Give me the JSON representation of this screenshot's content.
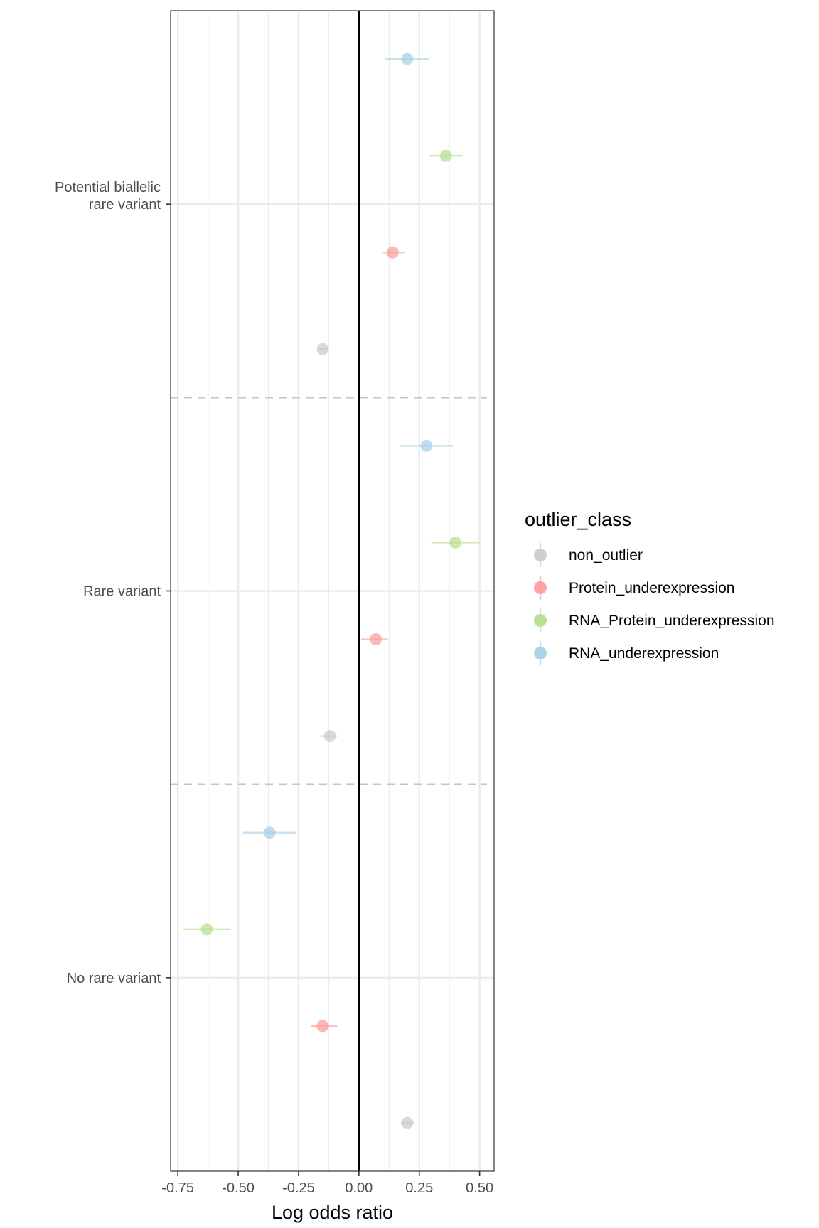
{
  "chart_data": {
    "type": "scatter",
    "subtype": "forest-plot-with-horizontal-error-bars",
    "xlabel": "Log odds ratio",
    "xlim": [
      -0.78,
      0.56
    ],
    "x_ticks": [
      -0.75,
      -0.5,
      -0.25,
      0.0,
      0.25,
      0.5
    ],
    "x_tick_labels": [
      "-0.75",
      "-0.50",
      "-0.25",
      "0.00",
      "0.25",
      "0.50"
    ],
    "reference_line_x": 0,
    "categories": [
      {
        "id": "potential",
        "lines": [
          "Potential biallelic",
          "rare variant"
        ]
      },
      {
        "id": "rare",
        "lines": [
          "Rare variant"
        ]
      },
      {
        "id": "none",
        "lines": [
          "No rare variant"
        ]
      }
    ],
    "grid": true,
    "legend": {
      "title": "outlier_class",
      "placement": "right",
      "entries": [
        {
          "name": "non_outlier",
          "color": "#c9c9c9"
        },
        {
          "name": "Protein_underexpression",
          "color": "#fb9a99"
        },
        {
          "name": "RNA_Protein_underexpression",
          "color": "#b2df8a"
        },
        {
          "name": "RNA_underexpression",
          "color": "#a6cee3"
        }
      ]
    },
    "series": [
      {
        "name": "non_outlier",
        "color": "#c9c9c9",
        "points": [
          {
            "category": "potential",
            "x": -0.15,
            "xmin": -0.17,
            "xmax": -0.13
          },
          {
            "category": "rare",
            "x": -0.12,
            "xmin": -0.16,
            "xmax": -0.09
          },
          {
            "category": "none",
            "x": 0.2,
            "xmin": 0.18,
            "xmax": 0.23
          }
        ]
      },
      {
        "name": "Protein_underexpression",
        "color": "#fb9a99",
        "points": [
          {
            "category": "potential",
            "x": 0.14,
            "xmin": 0.1,
            "xmax": 0.19
          },
          {
            "category": "rare",
            "x": 0.07,
            "xmin": 0.01,
            "xmax": 0.12
          },
          {
            "category": "none",
            "x": -0.15,
            "xmin": -0.2,
            "xmax": -0.09
          }
        ]
      },
      {
        "name": "RNA_Protein_underexpression",
        "color": "#b2df8a",
        "points": [
          {
            "category": "potential",
            "x": 0.36,
            "xmin": 0.29,
            "xmax": 0.43
          },
          {
            "category": "rare",
            "x": 0.4,
            "xmin": 0.3,
            "xmax": 0.5
          },
          {
            "category": "none",
            "x": -0.63,
            "xmin": -0.73,
            "xmax": -0.53
          }
        ]
      },
      {
        "name": "RNA_underexpression",
        "color": "#a6cee3",
        "points": [
          {
            "category": "potential",
            "x": 0.2,
            "xmin": 0.11,
            "xmax": 0.29
          },
          {
            "category": "rare",
            "x": 0.28,
            "xmin": 0.17,
            "xmax": 0.39
          },
          {
            "category": "none",
            "x": -0.37,
            "xmin": -0.48,
            "xmax": -0.26
          }
        ]
      }
    ]
  }
}
